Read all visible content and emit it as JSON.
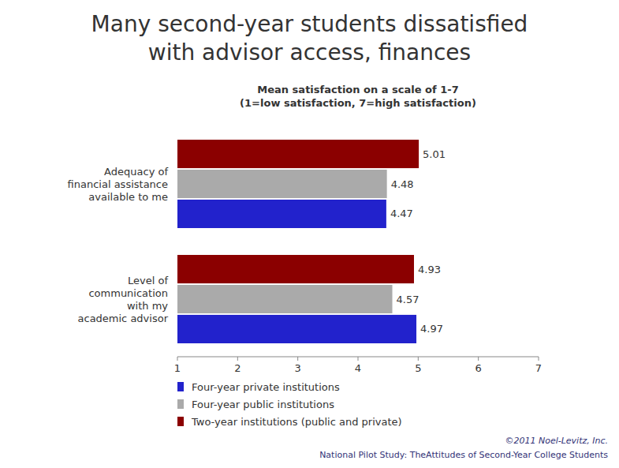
{
  "chart_data": {
    "type": "bar",
    "orientation": "horizontal",
    "title": "Many second-year students dissatisfied\nwith advisor access, finances",
    "subtitle": "Mean satisfaction on a scale of 1-7\n(1=low satisfaction, 7=high satisfaction)",
    "categories": [
      "Level of\ncommunication\nwith my\nacademic advisor",
      "Adequacy of\nfinancial assistance\navailable to me"
    ],
    "series": [
      {
        "name": "Four-year private institutions",
        "color": "#2222CC",
        "values": [
          4.97,
          4.47
        ]
      },
      {
        "name": "Four-year public institutions",
        "color": "#AAAAAA",
        "values": [
          4.57,
          4.48
        ]
      },
      {
        "name": "Two-year institutions (public and private)",
        "color": "#8B0000",
        "values": [
          4.93,
          5.01
        ]
      }
    ],
    "xlim": [
      1,
      7
    ],
    "xticks": [
      1,
      2,
      3,
      4,
      5,
      6,
      7
    ],
    "data_labels": true,
    "grid": false,
    "legend": "bottom",
    "annotations": [
      "©2011 Noel-Levitz, Inc.",
      "National Pilot Study: TheAttitudes of Second-Year College Students"
    ]
  }
}
